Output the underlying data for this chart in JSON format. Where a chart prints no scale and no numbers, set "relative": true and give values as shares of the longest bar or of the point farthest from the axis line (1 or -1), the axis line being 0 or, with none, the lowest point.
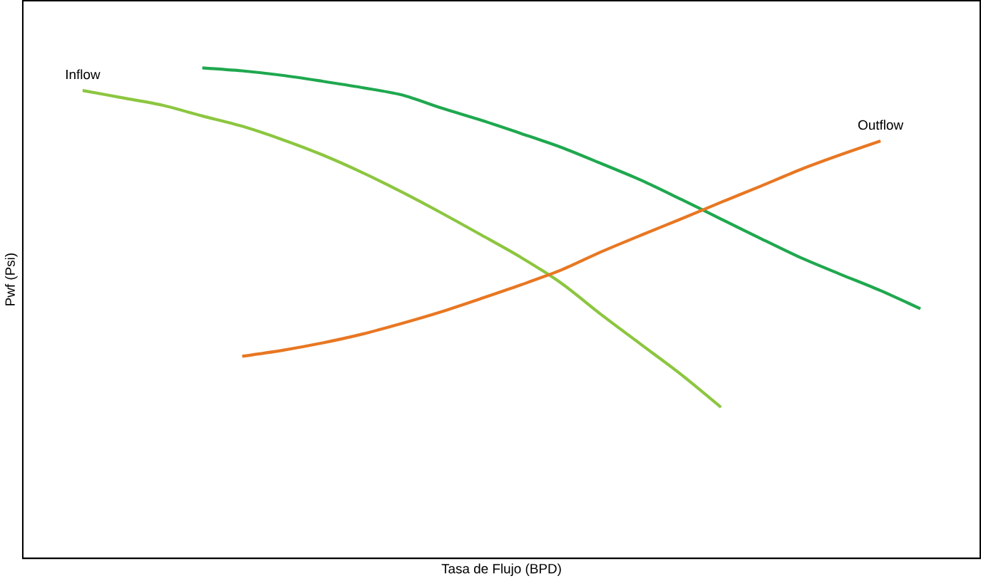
{
  "chart_data": {
    "type": "line",
    "relative": true,
    "xlabel": "Tasa de Flujo (BPD)",
    "ylabel": "Pwf (Psi)",
    "categories": [
      null,
      null,
      null,
      null,
      null,
      null,
      null,
      null,
      null,
      null,
      null,
      null,
      null,
      null,
      null,
      null,
      null,
      null,
      null,
      null,
      null,
      null,
      null,
      null
    ],
    "series": [
      {
        "name": "Inflow",
        "color": "#8cc63f",
        "values": [
          null,
          0.954,
          0.939,
          0.924,
          0.902,
          0.881,
          0.854,
          0.823,
          0.787,
          0.747,
          0.704,
          0.659,
          0.613,
          0.561,
          0.497,
          0.436,
          0.375,
          0.308,
          null,
          null,
          null,
          null,
          null,
          null
        ]
      },
      {
        "color": "#1fa84f",
        "values": [
          null,
          null,
          null,
          null,
          1.0,
          0.994,
          0.985,
          0.973,
          0.96,
          0.945,
          0.918,
          0.893,
          0.866,
          0.838,
          0.805,
          0.771,
          0.732,
          0.692,
          0.652,
          0.613,
          0.579,
          0.546,
          0.509,
          null
        ]
      },
      {
        "name": "Outflow",
        "color": "#e87722",
        "values": [
          null,
          null,
          null,
          null,
          null,
          0.412,
          0.424,
          0.439,
          0.457,
          0.479,
          0.503,
          0.53,
          0.558,
          0.588,
          0.625,
          0.659,
          0.692,
          0.726,
          0.759,
          0.793,
          0.823,
          0.851,
          null,
          null
        ]
      }
    ]
  }
}
